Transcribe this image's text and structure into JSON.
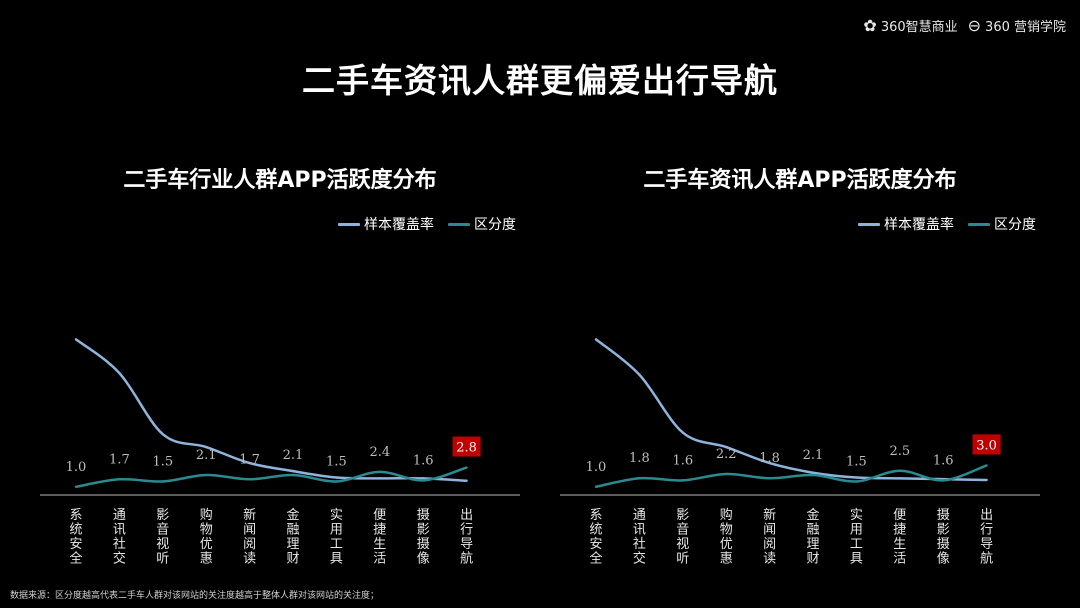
{
  "brand": {
    "logo_1": "360智慧商业",
    "logo_2": "360 营销学院"
  },
  "title": "二手车资讯人群更偏爱出行导航",
  "footnote": "数据来源：区分度越高代表二手车人群对该网站的关注度越高于整体人群对该网站的关注度；",
  "colors": {
    "coverage": "#8fb4dc",
    "distinction": "#2a8a8f",
    "highlight_bg": "#c00000",
    "axis": "#b8b8b8",
    "label": "#bdbdbd"
  },
  "chart_data": [
    {
      "type": "line",
      "title": "二手车行业人群APP活跃度分布",
      "categories": [
        "系统安全",
        "通讯社交",
        "影音视听",
        "购物优惠",
        "新闻阅读",
        "金融理财",
        "实用工具",
        "便捷生活",
        "摄影摄像",
        "出行导航"
      ],
      "category_lines": [
        [
          "系统",
          "安全"
        ],
        [
          "通讯",
          "社交"
        ],
        [
          "影音",
          "视听"
        ],
        [
          "购物",
          "优惠"
        ],
        [
          "新闻",
          "阅读"
        ],
        [
          "金融",
          "理财"
        ],
        [
          "实用",
          "工具"
        ],
        [
          "便捷",
          "生活"
        ],
        [
          "摄影",
          "摄像"
        ],
        [
          "出行",
          "导航"
        ]
      ],
      "series": [
        {
          "name": "样本覆盖率",
          "values": [
            0.95,
            0.74,
            0.36,
            0.28,
            0.18,
            0.13,
            0.09,
            0.085,
            0.085,
            0.07
          ]
        },
        {
          "name": "区分度",
          "values": [
            1.0,
            1.7,
            1.5,
            2.1,
            1.7,
            2.1,
            1.5,
            2.4,
            1.6,
            2.8
          ],
          "labels": [
            "1.0",
            "1.7",
            "1.5",
            "2.1",
            "1.7",
            "2.1",
            "1.5",
            "2.4",
            "1.6",
            "2.8"
          ]
        }
      ],
      "highlight_index": 9,
      "ylim": [
        0,
        1
      ],
      "distinction_ylim": [
        0,
        10
      ]
    },
    {
      "type": "line",
      "title": "二手车资讯人群APP活跃度分布",
      "categories": [
        "系统安全",
        "通讯社交",
        "影音视听",
        "购物优惠",
        "新闻阅读",
        "金融理财",
        "实用工具",
        "便捷生活",
        "摄影摄像",
        "出行导航"
      ],
      "category_lines": [
        [
          "系统",
          "安全"
        ],
        [
          "通讯",
          "社交"
        ],
        [
          "影音",
          "视听"
        ],
        [
          "购物",
          "优惠"
        ],
        [
          "新闻",
          "阅读"
        ],
        [
          "金融",
          "理财"
        ],
        [
          "实用",
          "工具"
        ],
        [
          "便捷",
          "生活"
        ],
        [
          "摄影",
          "摄像"
        ],
        [
          "出行",
          "导航"
        ]
      ],
      "series": [
        {
          "name": "样本覆盖率",
          "values": [
            0.95,
            0.73,
            0.37,
            0.28,
            0.18,
            0.12,
            0.09,
            0.085,
            0.08,
            0.075
          ]
        },
        {
          "name": "区分度",
          "values": [
            1.0,
            1.8,
            1.6,
            2.2,
            1.8,
            2.1,
            1.5,
            2.5,
            1.6,
            3.0
          ],
          "labels": [
            "1.0",
            "1.8",
            "1.6",
            "2.2",
            "1.8",
            "2.1",
            "1.5",
            "2.5",
            "1.6",
            "3.0"
          ]
        }
      ],
      "highlight_index": 9,
      "ylim": [
        0,
        1
      ],
      "distinction_ylim": [
        0,
        10
      ]
    }
  ]
}
